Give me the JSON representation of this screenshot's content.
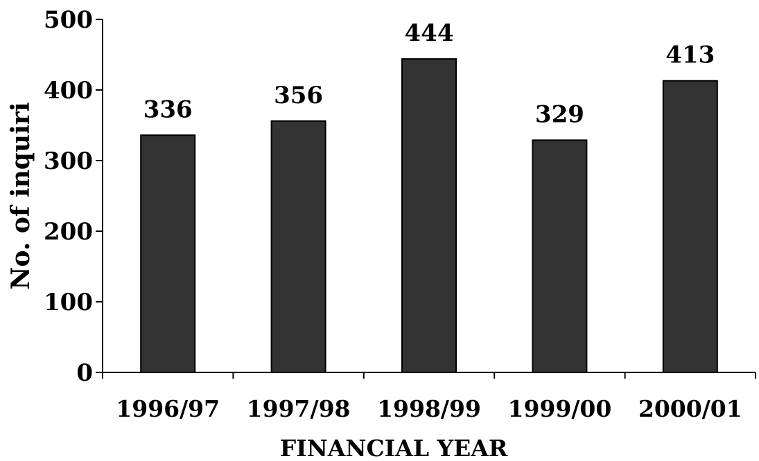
{
  "chart_data": {
    "type": "bar",
    "categories": [
      "1996/97",
      "1997/98",
      "1998/99",
      "1999/00",
      "2000/01"
    ],
    "values": [
      336,
      356,
      444,
      329,
      413
    ],
    "data_labels": [
      "336",
      "356",
      "444",
      "329",
      "413"
    ],
    "title": "",
    "xlabel": "FINANCIAL YEAR",
    "ylabel": "No. of inquiri",
    "ylim": [
      0,
      500
    ],
    "yticks": [
      0,
      100,
      200,
      300,
      400,
      500
    ],
    "ytick_labels": [
      "0",
      "100",
      "200",
      "300",
      "400",
      "500"
    ],
    "grid": false,
    "legend": "none"
  },
  "colors": {
    "bar_fill": "#333333",
    "bar_stroke": "#000000",
    "axis": "#000000",
    "text": "#000000",
    "background": "#ffffff"
  }
}
